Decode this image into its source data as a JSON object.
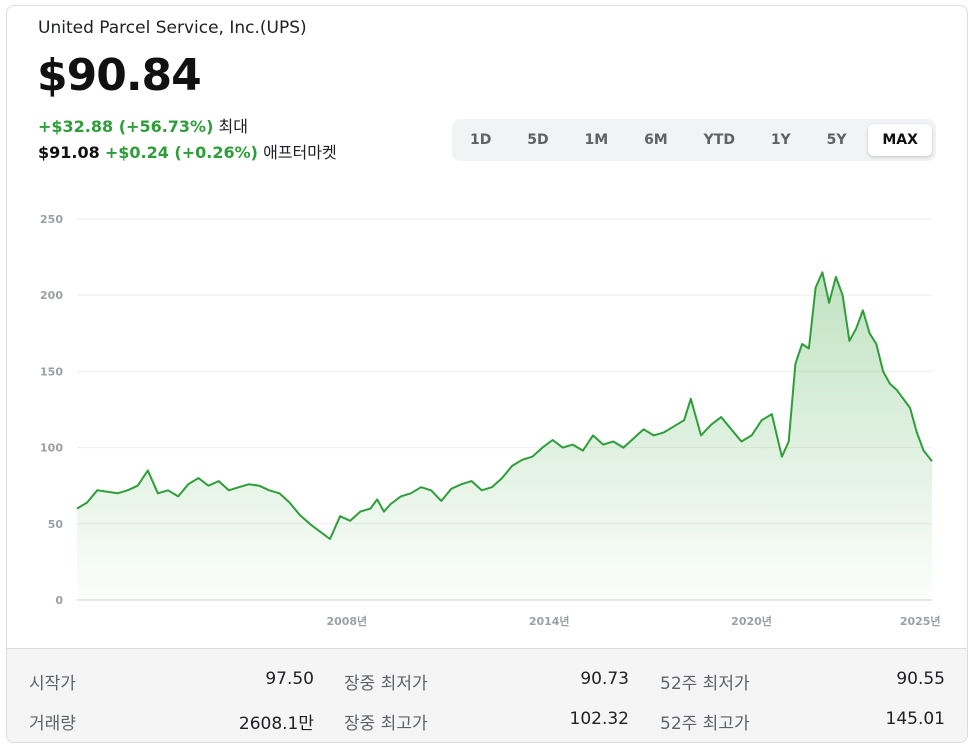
{
  "header": {
    "company": "United Parcel Service, Inc.(UPS)",
    "price": "$90.84",
    "change": "+$32.88 (+56.73%)",
    "change_period": "최대",
    "after_price": "$91.08",
    "after_change": "+$0.24 (+0.26%)",
    "after_label": "애프터마켓"
  },
  "tabs": [
    {
      "label": "1D"
    },
    {
      "label": "5D"
    },
    {
      "label": "1M"
    },
    {
      "label": "6M"
    },
    {
      "label": "YTD"
    },
    {
      "label": "1Y"
    },
    {
      "label": "5Y"
    },
    {
      "label": "MAX"
    }
  ],
  "active_tab": "MAX",
  "colors": {
    "line": "#2e9e3a",
    "fill": "#4caf50",
    "grid": "#eeeeee",
    "axis_text": "#9aa0a6"
  },
  "chart_data": {
    "type": "area",
    "xlabel": "",
    "ylabel": "",
    "ylim": [
      0,
      250
    ],
    "xlim": [
      2000,
      2025.35
    ],
    "yticks": [
      0,
      50,
      100,
      150,
      200,
      250
    ],
    "xticks": [
      {
        "x": 2008,
        "label": "2008년"
      },
      {
        "x": 2014,
        "label": "2014년"
      },
      {
        "x": 2020,
        "label": "2020년"
      },
      {
        "x": 2025,
        "label": "2025년"
      }
    ],
    "grid": true,
    "legend": "none",
    "x": [
      2000.0,
      2000.3,
      2000.6,
      2000.9,
      2001.2,
      2001.5,
      2001.8,
      2002.1,
      2002.4,
      2002.7,
      2003.0,
      2003.3,
      2003.6,
      2003.9,
      2004.2,
      2004.5,
      2004.8,
      2005.1,
      2005.4,
      2005.7,
      2006.0,
      2006.3,
      2006.6,
      2006.9,
      2007.2,
      2007.5,
      2007.8,
      2008.1,
      2008.4,
      2008.7,
      2008.9,
      2009.1,
      2009.3,
      2009.6,
      2009.9,
      2010.2,
      2010.5,
      2010.8,
      2011.1,
      2011.4,
      2011.7,
      2012.0,
      2012.3,
      2012.6,
      2012.9,
      2013.2,
      2013.5,
      2013.8,
      2014.1,
      2014.4,
      2014.7,
      2015.0,
      2015.3,
      2015.6,
      2015.9,
      2016.2,
      2016.5,
      2016.8,
      2017.1,
      2017.4,
      2017.7,
      2018.0,
      2018.2,
      2018.5,
      2018.8,
      2019.1,
      2019.4,
      2019.7,
      2020.0,
      2020.3,
      2020.6,
      2020.9,
      2021.1,
      2021.3,
      2021.5,
      2021.7,
      2021.9,
      2022.1,
      2022.3,
      2022.5,
      2022.7,
      2022.9,
      2023.1,
      2023.3,
      2023.5,
      2023.7,
      2023.9,
      2024.1,
      2024.3,
      2024.5,
      2024.7,
      2024.9,
      2025.1,
      2025.35
    ],
    "series": [
      {
        "values": [
          60,
          64,
          72,
          71,
          70,
          72,
          75,
          85,
          70,
          72,
          68,
          76,
          80,
          75,
          78,
          72,
          74,
          76,
          75,
          72,
          70,
          64,
          56,
          50,
          45,
          40,
          55,
          52,
          58,
          60,
          66,
          58,
          63,
          68,
          70,
          74,
          72,
          65,
          73,
          76,
          78,
          72,
          74,
          80,
          88,
          92,
          94,
          100,
          105,
          100,
          102,
          98,
          108,
          102,
          104,
          100,
          106,
          112,
          108,
          110,
          114,
          118,
          132,
          108,
          115,
          120,
          112,
          104,
          108,
          118,
          122,
          94,
          104,
          155,
          168,
          165,
          205,
          215,
          195,
          212,
          200,
          170,
          178,
          190,
          175,
          168,
          150,
          142,
          138,
          132,
          126,
          110,
          98,
          91
        ]
      }
    ]
  },
  "stats": [
    {
      "label": "시작가",
      "value": "97.50"
    },
    {
      "label": "장중 최저가",
      "value": "90.73"
    },
    {
      "label": "52주 최저가",
      "value": "90.55"
    },
    {
      "label": "거래량",
      "value": "2608.1만"
    },
    {
      "label": "장중 최고가",
      "value": "102.32"
    },
    {
      "label": "52주 최고가",
      "value": "145.01"
    }
  ]
}
